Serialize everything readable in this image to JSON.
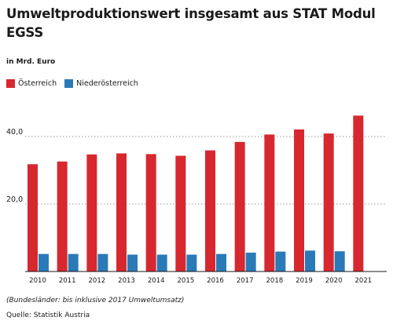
{
  "chart_data": {
    "type": "bar",
    "title": "Umweltproduktionswert insgesamt aus STAT Modul EGSS",
    "unit_label": "in Mrd. Euro",
    "categories": [
      "2010",
      "2011",
      "2012",
      "2013",
      "2014",
      "2015",
      "2016",
      "2017",
      "2018",
      "2019",
      "2020",
      "2021"
    ],
    "series": [
      {
        "name": "Österreich",
        "color": "#d7282f",
        "values": [
          31.8,
          32.6,
          34.7,
          35.0,
          34.8,
          34.3,
          35.9,
          38.4,
          40.6,
          42.1,
          40.9,
          46.2
        ]
      },
      {
        "name": "Niederösterreich",
        "color": "#2a7ab8",
        "values": [
          5.2,
          5.2,
          5.2,
          5.0,
          5.0,
          5.0,
          5.2,
          5.6,
          5.9,
          6.2,
          6.0,
          null
        ]
      }
    ],
    "y_ticks": [
      "20,0",
      "40,0"
    ],
    "y_tick_values": [
      20,
      40
    ],
    "ylim": [
      0,
      50
    ],
    "grid": "horizontal dotted",
    "legend_position": "top-left",
    "note": "(Bundesländer: bis inklusive 2017 Umweltumsatz)",
    "source": "Quelle: Statistik Austria"
  }
}
